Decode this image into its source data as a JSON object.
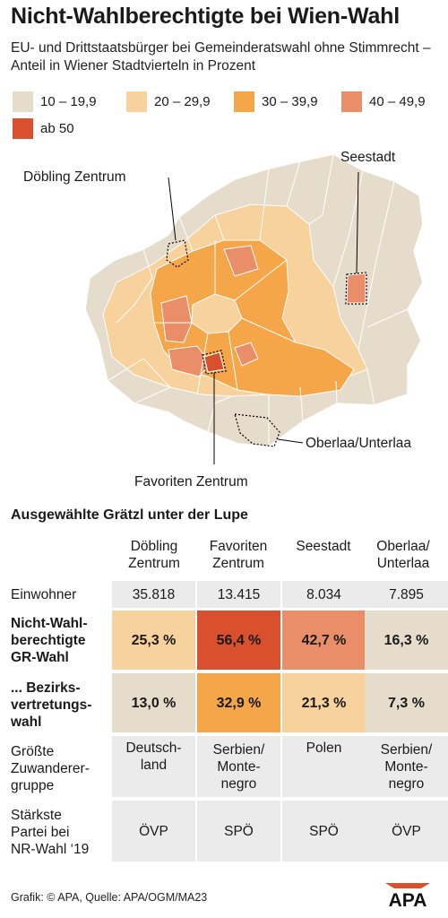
{
  "header": {
    "title": "Nicht-Wahlberechtigte bei Wien-Wahl",
    "subtitle": "EU- und Drittstaatsbürger bei Gemeinderatswahl ohne Stimmrecht – Anteil in Wiener Stadtvierteln in Prozent"
  },
  "legend": [
    {
      "label": "10 – 19,9",
      "color": "#e6dccb"
    },
    {
      "label": "20 – 29,9",
      "color": "#f8d29c"
    },
    {
      "label": "30 – 39,9",
      "color": "#f4a648"
    },
    {
      "label": "40 – 49,9",
      "color": "#ea8e6a"
    },
    {
      "label": "ab 50",
      "color": "#d9502f"
    }
  ],
  "map": {
    "labels": {
      "doebling": "Döbling Zentrum",
      "seestadt": "Seestadt",
      "oberlaa": "Oberlaa/Unterlaa",
      "favoriten": "Favoriten Zentrum"
    }
  },
  "table": {
    "section_title": "Ausgewählte Grätzl unter der Lupe",
    "columns": [
      "Döbling\nZentrum",
      "Favoriten\nZentrum",
      "Seestadt",
      "Oberlaa/\nUnterlaa"
    ],
    "row_labels": {
      "einwohner": "Einwohner",
      "gr_wahl": "Nicht-Wahl-\nberechtigte\nGR-Wahl",
      "bv_wahl": "... Bezirks-\nvertretungs-\nwahl",
      "zuwanderer": "Größte\nZuwanderer-\ngruppe",
      "partei": "Stärkste\nPartei bei\nNR-Wahl ‘19"
    },
    "einwohner": [
      "35.818",
      "13.415",
      "8.034",
      "7.895"
    ],
    "gr_wahl": [
      "25,3 %",
      "56,4 %",
      "42,7 %",
      "16,3 %"
    ],
    "gr_wahl_colors": [
      "#f8d29c",
      "#d9502f",
      "#ea8e6a",
      "#e6dccb"
    ],
    "bv_wahl": [
      "13,0 %",
      "32,9 %",
      "21,3 %",
      "7,3 %"
    ],
    "bv_wahl_colors": [
      "#e6dccb",
      "#f4a648",
      "#f8d29c",
      "#e6dccb"
    ],
    "zuwanderer": [
      "Deutsch-\nland",
      "Serbien/\nMonte-\nnegro",
      "Polen",
      "Serbien/\nMonte-\nnegro"
    ],
    "partei": [
      "ÖVP",
      "SPÖ",
      "SPÖ",
      "ÖVP"
    ]
  },
  "chart_data": {
    "type": "table",
    "title": "Ausgewählte Grätzl unter der Lupe",
    "categories": [
      "Döbling Zentrum",
      "Favoriten Zentrum",
      "Seestadt",
      "Oberlaa/Unterlaa"
    ],
    "series": [
      {
        "name": "Einwohner",
        "values": [
          35818,
          13415,
          8034,
          7895
        ]
      },
      {
        "name": "Nicht-Wahlberechtigte GR-Wahl",
        "values": [
          25.3,
          56.4,
          42.7,
          16.3
        ]
      },
      {
        "name": "... Bezirksvertretungswahl",
        "values": [
          13.0,
          32.9,
          21.3,
          7.3
        ]
      }
    ]
  },
  "footer": {
    "source": "Grafik: © APA, Quelle: APA/OGM/MA23",
    "logo": "APA"
  }
}
